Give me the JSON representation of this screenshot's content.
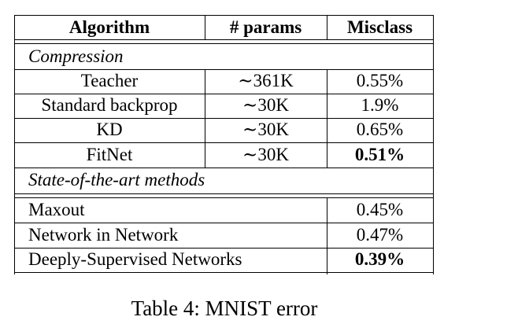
{
  "table": {
    "headers": [
      "Algorithm",
      "# params",
      "Misclass"
    ],
    "sections": [
      {
        "title": "Compression",
        "rows": [
          {
            "algorithm": "Teacher",
            "params": "∼361K",
            "misclass": "0.55%",
            "bold": false
          },
          {
            "algorithm": "Standard backprop",
            "params": "∼30K",
            "misclass": "1.9%",
            "bold": false
          },
          {
            "algorithm": "KD",
            "params": "∼30K",
            "misclass": "0.65%",
            "bold": false
          },
          {
            "algorithm": "FitNet",
            "params": "∼30K",
            "misclass": "0.51%",
            "bold": true
          }
        ]
      },
      {
        "title": "State-of-the-art methods",
        "rows": [
          {
            "algorithm": "Maxout",
            "params": "",
            "misclass": "0.45%",
            "bold": false
          },
          {
            "algorithm": "Network in Network",
            "params": "",
            "misclass": "0.47%",
            "bold": false
          },
          {
            "algorithm": "Deeply-Supervised Networks",
            "params": "",
            "misclass": "0.39%",
            "bold": true
          }
        ]
      }
    ]
  },
  "caption": "Table 4: MNIST error"
}
